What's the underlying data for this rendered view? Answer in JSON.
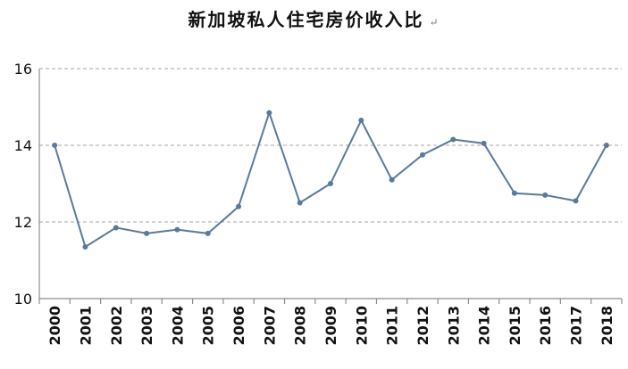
{
  "chart_data": {
    "type": "line",
    "title": "新加坡私人住宅房价收入比",
    "title_mark": "↵",
    "x": [
      "2000",
      "2001",
      "2002",
      "2003",
      "2004",
      "2005",
      "2006",
      "2007",
      "2008",
      "2009",
      "2010",
      "2011",
      "2012",
      "2013",
      "2014",
      "2015",
      "2016",
      "2017",
      "2018"
    ],
    "series": [
      {
        "values": [
          14.0,
          11.35,
          11.85,
          11.7,
          11.8,
          11.7,
          12.4,
          14.85,
          12.5,
          13.0,
          14.65,
          13.1,
          13.75,
          14.15,
          14.05,
          12.75,
          12.7,
          12.55,
          14.0
        ]
      }
    ],
    "yticks": [
      "10",
      "12",
      "14",
      "16"
    ],
    "ylim": [
      10,
      16
    ],
    "grid": true,
    "line_color": "#5b7a99"
  }
}
